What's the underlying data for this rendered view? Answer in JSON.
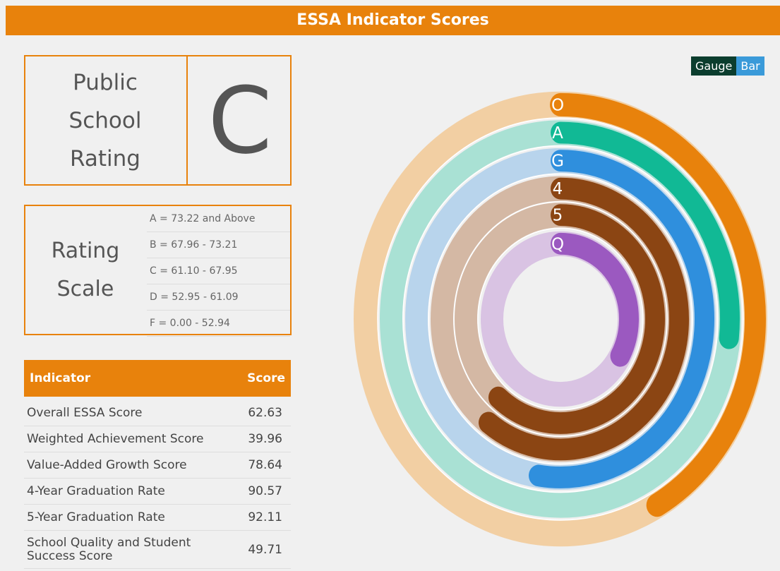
{
  "header": {
    "title": "ESSA Indicator Scores"
  },
  "toggle": [
    "Gauge",
    "Bar"
  ],
  "rating": {
    "label": "Public School Rating",
    "grade": "C"
  },
  "scale": {
    "label": "Rating Scale",
    "rows": [
      "A = 73.22 and Above",
      "B = 67.96 - 73.21",
      "C = 61.10 - 67.95",
      "D = 52.95 - 61.09",
      "F = 0.00 - 52.94"
    ]
  },
  "table": {
    "columns": [
      "Indicator",
      "Score"
    ]
  },
  "chart_data": {
    "type": "radial_bar",
    "categories": [
      "Overall ESSA Score",
      "Weighted Achievement Score",
      "Value-Added Growth Score",
      "4-Year Graduation Rate",
      "5-Year Graduation Rate",
      "School Quality and Student Success Score"
    ],
    "ring_labels": [
      "O",
      "A",
      "G",
      "4",
      "5",
      "Q"
    ],
    "values": [
      62.63,
      39.96,
      78.64,
      90.57,
      92.11,
      49.71
    ],
    "colors": [
      "#e8820c",
      "#11b995",
      "#2f8fdd",
      "#8b4513",
      "#8b4513",
      "#9b59c0"
    ],
    "track_colors": [
      "#f2cfa3",
      "#a9e1d4",
      "#b8d4ec",
      "#d4b8a4",
      "#d4b8a4",
      "#d9c3e3"
    ],
    "ylim": [
      0,
      150
    ]
  }
}
